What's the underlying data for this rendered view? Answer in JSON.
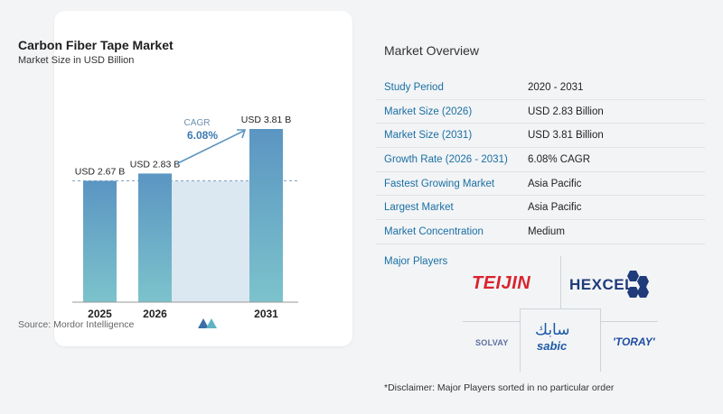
{
  "chart": {
    "title": "Carbon Fiber Tape Market",
    "subtitle": "Market Size in USD Billion",
    "source": "Source:  Mordor Intelligence",
    "cagr_label": "CAGR",
    "cagr_value": "6.08%"
  },
  "chart_data": {
    "type": "bar",
    "categories": [
      "2025",
      "2026",
      "2031"
    ],
    "values": [
      2.67,
      2.83,
      3.81
    ],
    "value_labels": [
      "USD 2.67 B",
      "USD 2.83 B",
      "USD 3.81 B"
    ],
    "ylim": [
      0,
      3.81
    ],
    "annotations": [
      "CAGR 6.08%"
    ],
    "colors": {
      "bar_top": "#5b95c2",
      "bar_bottom": "#7cc3cc",
      "highlight": "#dbe8f1",
      "arrow": "#5b95c2"
    }
  },
  "overview": {
    "title": "Market Overview",
    "rows": [
      {
        "label": "Study Period",
        "value": "2020 - 2031"
      },
      {
        "label": "Market Size (2026)",
        "value": "USD 2.83 Billion"
      },
      {
        "label": "Market Size (2031)",
        "value": "USD 3.81 Billion"
      },
      {
        "label": "Growth Rate (2026 - 2031)",
        "value": "6.08% CAGR"
      },
      {
        "label": "Fastest Growing Market",
        "value": "Asia Pacific"
      },
      {
        "label": "Largest Market",
        "value": "Asia Pacific"
      },
      {
        "label": "Market Concentration",
        "value": "Medium"
      }
    ]
  },
  "players": {
    "title": "Major Players",
    "logos": {
      "teijin": "TEIJIN",
      "hexcel": "HEXCEL",
      "solvay": "SOLVAY",
      "sabic_ar": "سابك",
      "sabic": "sabic",
      "toray": "'TORAY'"
    }
  },
  "disclaimer": "*Disclaimer: Major Players sorted in no particular order"
}
